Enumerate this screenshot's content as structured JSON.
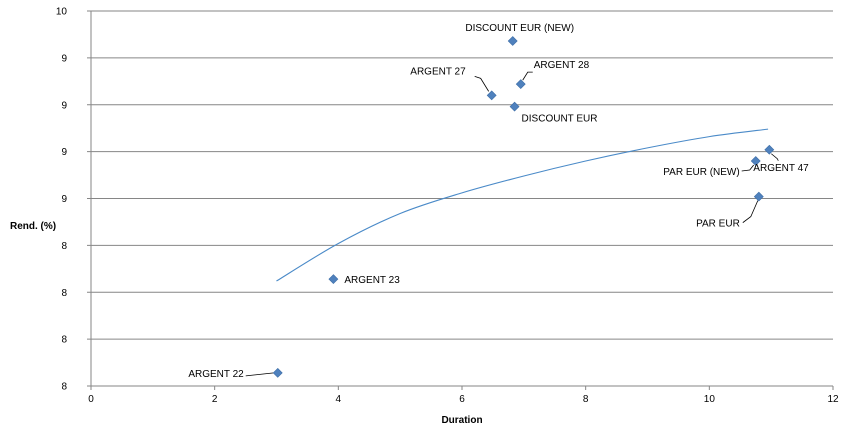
{
  "chart_data": {
    "type": "scatter",
    "xlabel": "Duration",
    "ylabel": "Rend. (%)",
    "xlim": [
      0,
      12
    ],
    "ylim": [
      8.0,
      10.0
    ],
    "x_ticks": [
      0,
      2,
      4,
      6,
      8,
      10,
      12
    ],
    "x_tick_labels": [
      "0",
      "2",
      "4",
      "6",
      "8",
      "10",
      "12"
    ],
    "y_ticks": [
      8.0,
      8.25,
      8.5,
      8.75,
      9.0,
      9.25,
      9.5,
      9.75,
      10.0
    ],
    "y_tick_labels": [
      "8",
      "8",
      "8",
      "8",
      "9",
      "9",
      "9",
      "9",
      "10"
    ],
    "grid": "horizontal",
    "marker_color": "#4F81BD",
    "trendline_color": "#4A8AC8",
    "points": [
      {
        "label": "ARGENT 22",
        "x": 3.02,
        "y": 8.07
      },
      {
        "label": "ARGENT 23",
        "x": 3.92,
        "y": 8.57
      },
      {
        "label": "ARGENT 27",
        "x": 6.48,
        "y": 9.55
      },
      {
        "label": "ARGENT 28",
        "x": 6.95,
        "y": 9.61
      },
      {
        "label": "DISCOUNT EUR (NEW)",
        "x": 6.82,
        "y": 9.84
      },
      {
        "label": "DISCOUNT EUR",
        "x": 6.85,
        "y": 9.49
      },
      {
        "label": "PAR EUR (NEW)",
        "x": 10.75,
        "y": 9.2
      },
      {
        "label": "ARGENT 47",
        "x": 10.97,
        "y": 9.26
      },
      {
        "label": "PAR EUR",
        "x": 10.8,
        "y": 9.01
      }
    ],
    "trendline": {
      "x": [
        3.0,
        4.0,
        5.0,
        6.0,
        7.0,
        8.0,
        9.0,
        10.0,
        10.95
      ],
      "y": [
        8.56,
        8.76,
        8.92,
        9.03,
        9.12,
        9.2,
        9.27,
        9.33,
        9.37
      ]
    }
  }
}
